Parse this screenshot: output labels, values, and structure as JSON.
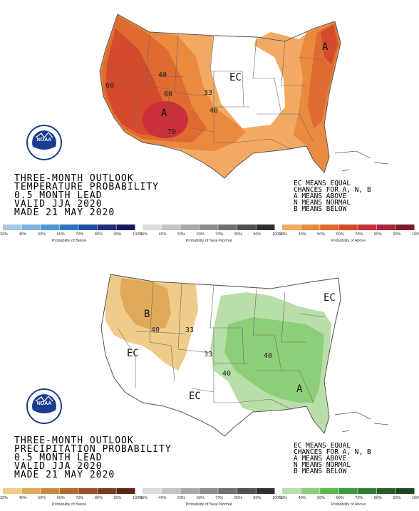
{
  "temperature": {
    "lines": [
      "THREE-MONTH OUTLOOK",
      "TEMPERATURE PROBABILITY",
      "0.5 MONTH LEAD",
      "VALID JJA 2020",
      "MADE 21 MAY 2020"
    ],
    "ec_note": [
      "EC MEANS EQUAL",
      "CHANCES FOR A, N, B",
      "A MEANS ABOVE",
      "N MEANS NORMAL",
      "B MEANS BELOW"
    ],
    "region_labels": {
      "ec": "EC",
      "above_west": "A",
      "above_northeast": "A"
    },
    "contour_labels": [
      "60",
      "40",
      "60",
      "33",
      "40",
      "70",
      "60"
    ],
    "legends": [
      {
        "title": "Probability of Below",
        "ticks": [
          "33%",
          "40%",
          "50%",
          "60%",
          "70%",
          "80%",
          "90%",
          "100%"
        ],
        "colors": [
          "#a6c8e8",
          "#7fb2e0",
          "#4f96d6",
          "#2a76c4",
          "#1d4f9e",
          "#1b2f7c",
          "#16195e"
        ]
      },
      {
        "title": "Probability of Near-Normal",
        "ticks": [
          "33%",
          "40%",
          "50%",
          "60%",
          "70%",
          "80%",
          "90%",
          "100%"
        ],
        "colors": [
          "#dcdcdc",
          "#c4c4c4",
          "#a8a8a8",
          "#8c8c8c",
          "#6e6e6e",
          "#505050",
          "#2f2f2f"
        ]
      },
      {
        "title": "Probability of Above",
        "ticks": [
          "33%",
          "40%",
          "50%",
          "60%",
          "70%",
          "80%",
          "90%",
          "100%"
        ],
        "colors": [
          "#f2aa62",
          "#e98a3e",
          "#df6b31",
          "#d44a2c",
          "#c9303a",
          "#a8263a",
          "#7c1e28"
        ]
      }
    ]
  },
  "precipitation": {
    "lines": [
      "THREE-MONTH OUTLOOK",
      "PRECIPITATION PROBABILITY",
      "0.5 MONTH LEAD",
      "VALID JJA 2020",
      "MADE 21 MAY 2020"
    ],
    "ec_note": [
      "EC MEANS EQUAL",
      "CHANCES FOR A, N, B",
      "A MEANS ABOVE",
      "N MEANS NORMAL",
      "B MEANS BELOW"
    ],
    "region_labels": {
      "ec_west": "EC",
      "ec_central": "EC",
      "ec_northeast": "EC",
      "below": "B",
      "above": "A"
    },
    "contour_labels": [
      "40",
      "33",
      "33",
      "40",
      "40"
    ],
    "legends": [
      {
        "title": "Probability of Below",
        "ticks": [
          "33%",
          "40%",
          "50%",
          "60%",
          "70%",
          "80%",
          "90%",
          "100%"
        ],
        "colors": [
          "#f0cc8a",
          "#deaa5a",
          "#c98a3e",
          "#b06a2e",
          "#95502a",
          "#7a3a1e",
          "#5a2812"
        ]
      },
      {
        "title": "Probability of Near-Normal",
        "ticks": [
          "33%",
          "40%",
          "50%",
          "60%",
          "70%",
          "80%",
          "90%",
          "100%"
        ],
        "colors": [
          "#dcdcdc",
          "#c4c4c4",
          "#a8a8a8",
          "#8c8c8c",
          "#6e6e6e",
          "#505050",
          "#2f2f2f"
        ]
      },
      {
        "title": "Probability of Above",
        "ticks": [
          "33%",
          "40%",
          "50%",
          "60%",
          "70%",
          "80%",
          "90%",
          "100%"
        ],
        "colors": [
          "#b9dfa8",
          "#8ccf78",
          "#5db84e",
          "#3d9a3d",
          "#2e7d32",
          "#246028",
          "#1b4720"
        ]
      }
    ]
  },
  "logo": {
    "text": "NOAA"
  }
}
